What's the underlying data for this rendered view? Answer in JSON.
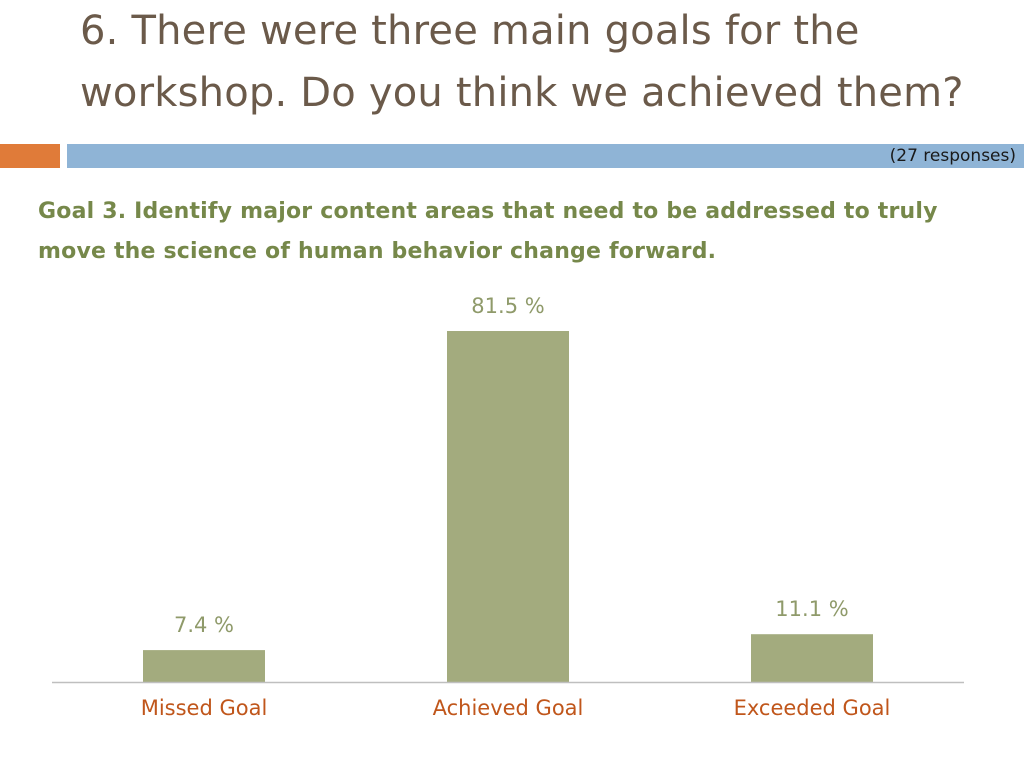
{
  "slide": {
    "title": "6. There were three main goals for the workshop. Do you think we achieved them?",
    "responses_note": "(27 responses)",
    "subtitle": "Goal 3. Identify major content areas that need to be addressed to truly move the science of human behavior change forward."
  },
  "colors": {
    "title": "#6b5a4a",
    "subtitle": "#76884a",
    "accent_orange": "#e07b39",
    "accent_blue": "#8fb4d6",
    "bar": "#a3ab7e",
    "data_label": "#8f9a6a",
    "category_label": "#c0561b",
    "axis": "#bfbfbf"
  },
  "chart_data": {
    "type": "bar",
    "categories": [
      "Missed Goal",
      "Achieved Goal",
      "Exceeded Goal"
    ],
    "values": [
      7.4,
      81.5,
      11.1
    ],
    "data_labels": [
      "7.4 %",
      "81.5 %",
      "11.1 %"
    ],
    "title": "",
    "xlabel": "",
    "ylabel": "",
    "ylim": [
      0,
      81.5
    ],
    "grid": false,
    "legend": "none"
  }
}
